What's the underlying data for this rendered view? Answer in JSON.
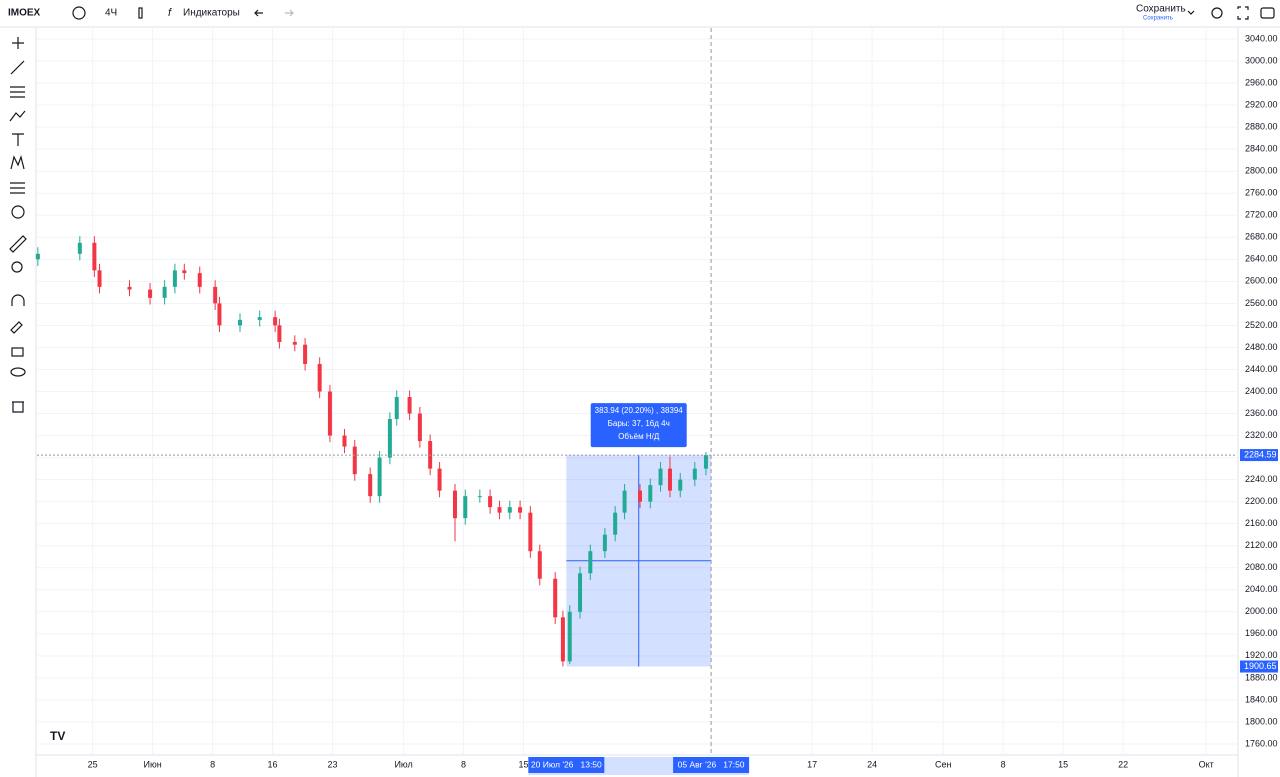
{
  "header": {
    "symbol": "IMOEX",
    "interval": "4Ч",
    "indicators": "Индикаторы",
    "save": "Сохранить",
    "save_status": "Сохранить"
  },
  "chart_data": {
    "type": "candlestick",
    "up_color": "#22ab94",
    "down_color": "#f23645",
    "grid": true,
    "xlim": [
      138.5,
      278.6
    ],
    "ylim": [
      1740,
      3060
    ],
    "xticks": [
      {
        "value": 145,
        "label": "25"
      },
      {
        "value": 152,
        "label": "Июн"
      },
      {
        "value": 159,
        "label": "8"
      },
      {
        "value": 166,
        "label": "16"
      },
      {
        "value": 173,
        "label": "23"
      },
      {
        "value": 181.3,
        "label": "Июл"
      },
      {
        "value": 188.3,
        "label": "8"
      },
      {
        "value": 195.3,
        "label": "15"
      },
      {
        "value": 229,
        "label": "17"
      },
      {
        "value": 236,
        "label": "24"
      },
      {
        "value": 244.3,
        "label": "Сен"
      },
      {
        "value": 251.3,
        "label": "8"
      },
      {
        "value": 258.3,
        "label": "15"
      },
      {
        "value": 265.3,
        "label": "22"
      },
      {
        "value": 275,
        "label": "Окт"
      }
    ],
    "yticks": [
      {
        "value": 1760,
        "label": "1760.00"
      },
      {
        "value": 1800,
        "label": "1800.00"
      },
      {
        "value": 1840,
        "label": "1840.00"
      },
      {
        "value": 1880,
        "label": "1880.00"
      },
      {
        "value": 1920,
        "label": "1920.00"
      },
      {
        "value": 1960,
        "label": "1960.00"
      },
      {
        "value": 2000,
        "label": "2000.00"
      },
      {
        "value": 2040,
        "label": "2040.00"
      },
      {
        "value": 2080,
        "label": "2080.00"
      },
      {
        "value": 2120,
        "label": "2120.00"
      },
      {
        "value": 2160,
        "label": "2160.00"
      },
      {
        "value": 2200,
        "label": "2200.00"
      },
      {
        "value": 2240,
        "label": "2240.00"
      },
      {
        "value": 2280,
        "label": "2280.00"
      },
      {
        "value": 2320,
        "label": "2320.00"
      },
      {
        "value": 2360,
        "label": "2360.00"
      },
      {
        "value": 2400,
        "label": "2400.00"
      },
      {
        "value": 2440,
        "label": "2440.00"
      },
      {
        "value": 2480,
        "label": "2480.00"
      },
      {
        "value": 2520,
        "label": "2520.00"
      },
      {
        "value": 2560,
        "label": "2560.00"
      },
      {
        "value": 2600,
        "label": "2600.00"
      },
      {
        "value": 2640,
        "label": "2640.00"
      },
      {
        "value": 2680,
        "label": "2680.00"
      },
      {
        "value": 2720,
        "label": "2720.00"
      },
      {
        "value": 2760,
        "label": "2760.00"
      },
      {
        "value": 2800,
        "label": "2800.00"
      },
      {
        "value": 2840,
        "label": "2840.00"
      },
      {
        "value": 2880,
        "label": "2880.00"
      },
      {
        "value": 2920,
        "label": "2920.00"
      },
      {
        "value": 2960,
        "label": "2960.00"
      },
      {
        "value": 3000,
        "label": "3000.00"
      },
      {
        "value": 3040,
        "label": "3040.00"
      }
    ],
    "x": [
      138.6,
      143.5,
      145.2,
      145.8,
      149.3,
      151.7,
      153.4,
      154.6,
      155.7,
      157.5,
      159.3,
      159.8,
      162.2,
      164.5,
      166.3,
      166.8,
      168.6,
      169.8,
      171.5,
      172.7,
      174.4,
      175.6,
      177.4,
      178.5,
      179.7,
      180.5,
      182.0,
      183.2,
      184.4,
      185.5,
      187.3,
      188.5,
      190.2,
      191.4,
      192.5,
      193.7,
      194.9,
      196.1,
      197.2,
      199.0,
      199.9,
      200.7,
      201.9,
      203.1,
      204.8,
      206.0,
      207.1,
      208.9,
      210.1,
      211.3,
      212.4,
      213.6,
      215.3,
      216.6
    ],
    "open": [
      2640,
      2650,
      2670,
      2620,
      2590,
      2585,
      2570,
      2590,
      2620,
      2615,
      2590,
      2560,
      2520,
      2530,
      2535,
      2520,
      2490,
      2485,
      2450,
      2400,
      2320,
      2300,
      2250,
      2210,
      2280,
      2350,
      2390,
      2360,
      2310,
      2260,
      2220,
      2170,
      2210,
      2210,
      2190,
      2180,
      2190,
      2180,
      2110,
      2060,
      1990,
      1910,
      2000,
      2070,
      2110,
      2140,
      2180,
      2220,
      2200,
      2230,
      2260,
      2220,
      2240,
      2260
    ],
    "high": [
      2662,
      2682,
      2682,
      2632,
      2602,
      2597,
      2602,
      2632,
      2632,
      2627,
      2602,
      2572,
      2542,
      2547,
      2547,
      2532,
      2502,
      2497,
      2462,
      2412,
      2332,
      2312,
      2262,
      2292,
      2362,
      2402,
      2402,
      2372,
      2322,
      2272,
      2232,
      2222,
      2222,
      2222,
      2202,
      2202,
      2202,
      2192,
      2122,
      2072,
      2002,
      2012,
      2082,
      2122,
      2152,
      2192,
      2232,
      2232,
      2242,
      2272,
      2282,
      2252,
      2272,
      2290
    ],
    "low": [
      2628,
      2638,
      2608,
      2578,
      2573,
      2558,
      2558,
      2578,
      2603,
      2578,
      2548,
      2508,
      2508,
      2518,
      2508,
      2478,
      2473,
      2438,
      2388,
      2308,
      2288,
      2238,
      2198,
      2198,
      2268,
      2338,
      2348,
      2298,
      2248,
      2208,
      2128,
      2158,
      2198,
      2178,
      2168,
      2168,
      2168,
      2098,
      2048,
      1978,
      1900.65,
      1905,
      1988,
      2058,
      2098,
      2128,
      2168,
      2188,
      2188,
      2218,
      2208,
      2208,
      2228,
      2248
    ],
    "close": [
      2650,
      2670,
      2620,
      2590,
      2585,
      2570,
      2590,
      2620,
      2615,
      2590,
      2560,
      2520,
      2530,
      2535,
      2520,
      2490,
      2485,
      2450,
      2400,
      2320,
      2300,
      2250,
      2210,
      2280,
      2350,
      2390,
      2360,
      2310,
      2260,
      2220,
      2170,
      2210,
      2210,
      2190,
      2180,
      2190,
      2180,
      2110,
      2060,
      1990,
      1910,
      2000,
      2070,
      2110,
      2140,
      2180,
      2220,
      2200,
      2230,
      2260,
      2220,
      2240,
      2260,
      2284.59
    ],
    "price_labels": [
      2284.59,
      1900.65
    ],
    "range_labels": [
      {
        "value": 200.3,
        "label": "20 Июл '26   13:50"
      },
      {
        "value": 217.2,
        "label": "05 Авг '26   17:50"
      }
    ],
    "measure": [
      "383.94 (20.20%) , 38394",
      "Бары: 37, 16д 4ч",
      "Объём Н/Д"
    ]
  }
}
